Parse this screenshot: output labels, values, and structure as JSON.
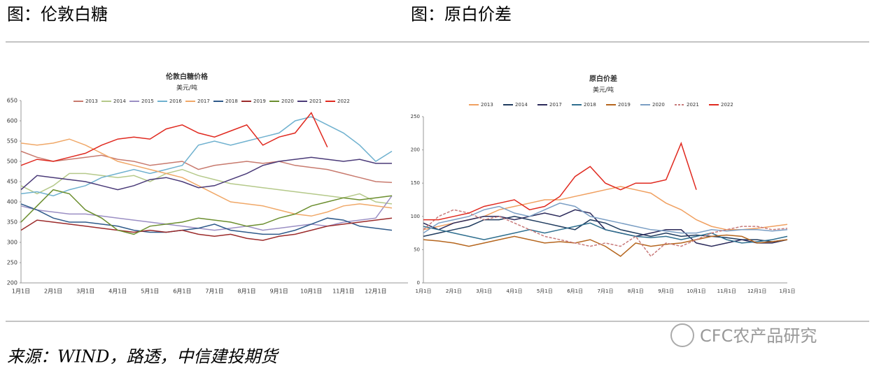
{
  "header": {
    "left": "图：伦敦白糖",
    "right": "图：原白价差"
  },
  "source": "来源：WIND，路透，中信建投期货",
  "watermark": "CFC农产品研究",
  "chart_data": [
    {
      "type": "line",
      "title": "伦敦白糖价格",
      "subtitle": "美元/吨",
      "categories": [
        "1月1日",
        null,
        "2月1日",
        null,
        "3月1日",
        null,
        "4月1日",
        null,
        "5月1日",
        null,
        "6月1日",
        null,
        "7月1日",
        null,
        "8月1日",
        null,
        "9月1日",
        null,
        "10月1日",
        null,
        "11月1日",
        null,
        "12月1日",
        null
      ],
      "ylim": [
        200,
        650
      ],
      "yticks": [
        200,
        250,
        300,
        350,
        400,
        450,
        500,
        550,
        600,
        650
      ],
      "series": [
        {
          "name": "2013",
          "color": "#c87a6e",
          "values": [
            525,
            510,
            500,
            505,
            510,
            515,
            505,
            500,
            490,
            495,
            500,
            480,
            490,
            495,
            500,
            495,
            500,
            490,
            485,
            480,
            470,
            460,
            450,
            448
          ]
        },
        {
          "name": "2014",
          "color": "#b5c98a",
          "values": [
            440,
            420,
            440,
            470,
            470,
            465,
            460,
            465,
            450,
            470,
            480,
            465,
            455,
            445,
            440,
            435,
            430,
            425,
            420,
            415,
            410,
            420,
            400,
            395
          ]
        },
        {
          "name": "2015",
          "color": "#9b8fc4",
          "values": [
            390,
            380,
            375,
            370,
            370,
            365,
            360,
            355,
            350,
            345,
            340,
            335,
            330,
            335,
            340,
            330,
            335,
            340,
            345,
            340,
            350,
            355,
            360,
            415
          ]
        },
        {
          "name": "2016",
          "color": "#6fb1cf",
          "values": [
            420,
            425,
            415,
            430,
            440,
            460,
            470,
            480,
            470,
            480,
            490,
            540,
            550,
            540,
            550,
            560,
            570,
            600,
            610,
            590,
            570,
            540,
            500,
            525
          ]
        },
        {
          "name": "2017",
          "color": "#f0a868",
          "values": [
            545,
            540,
            545,
            555,
            540,
            520,
            500,
            490,
            480,
            470,
            460,
            440,
            420,
            400,
            395,
            390,
            380,
            370,
            365,
            375,
            390,
            395,
            390,
            385
          ]
        },
        {
          "name": "2018",
          "color": "#2e5a8a",
          "values": [
            395,
            380,
            360,
            350,
            350,
            345,
            340,
            330,
            325,
            325,
            330,
            335,
            345,
            330,
            325,
            320,
            320,
            330,
            345,
            360,
            355,
            340,
            335,
            330
          ]
        },
        {
          "name": "2019",
          "color": "#9b2a2a",
          "values": [
            330,
            355,
            350,
            345,
            340,
            335,
            330,
            325,
            330,
            325,
            330,
            320,
            315,
            320,
            310,
            305,
            315,
            320,
            330,
            340,
            345,
            350,
            355,
            360
          ]
        },
        {
          "name": "2020",
          "color": "#6b8e2e",
          "values": [
            350,
            390,
            430,
            420,
            380,
            360,
            330,
            320,
            340,
            345,
            350,
            360,
            355,
            350,
            340,
            345,
            360,
            370,
            390,
            400,
            410,
            405,
            410,
            415
          ]
        },
        {
          "name": "2021",
          "color": "#4a3a78",
          "values": [
            430,
            465,
            460,
            455,
            450,
            440,
            430,
            440,
            455,
            460,
            450,
            435,
            440,
            455,
            470,
            490,
            500,
            505,
            510,
            505,
            500,
            505,
            495,
            495
          ]
        },
        {
          "name": "2022",
          "color": "#e0291f",
          "values": [
            490,
            505,
            500,
            510,
            520,
            540,
            555,
            560,
            555,
            580,
            590,
            570,
            560,
            575,
            590,
            540,
            560,
            570,
            620,
            535,
            null,
            null,
            null,
            null
          ]
        }
      ]
    },
    {
      "type": "line",
      "title": "原白价差",
      "subtitle": "美元/吨",
      "categories": [
        "1月1日",
        null,
        "2月1日",
        null,
        "3月1日",
        null,
        "4月1日",
        null,
        "5月1日",
        null,
        "6月1日",
        null,
        "7月1日",
        null,
        "8月1日",
        null,
        "9月1日",
        null,
        "10月1日",
        null,
        "11月1日",
        null,
        "12月1日",
        null,
        "1月1日"
      ],
      "ylim": [
        0,
        250
      ],
      "yticks": [
        0,
        50,
        100,
        150,
        200,
        250
      ],
      "series": [
        {
          "name": "2013",
          "color": "#f0a060",
          "values": [
            80,
            85,
            90,
            95,
            100,
            110,
            115,
            120,
            125,
            125,
            130,
            135,
            140,
            145,
            140,
            135,
            120,
            110,
            95,
            85,
            80,
            80,
            82,
            85,
            88
          ]
        },
        {
          "name": "2014",
          "color": "#1f3b5e",
          "values": [
            70,
            75,
            80,
            85,
            95,
            95,
            100,
            95,
            90,
            85,
            80,
            95,
            90,
            80,
            75,
            70,
            75,
            70,
            72,
            70,
            68,
            65,
            65,
            62,
            65
          ]
        },
        {
          "name": "2017",
          "color": "#2b2a5a",
          "values": [
            90,
            80,
            90,
            95,
            100,
            100,
            95,
            100,
            105,
            100,
            110,
            105,
            80,
            75,
            70,
            75,
            80,
            80,
            60,
            55,
            60,
            65,
            60,
            60,
            65
          ]
        },
        {
          "name": "2018",
          "color": "#2e6e8e",
          "values": [
            85,
            80,
            75,
            70,
            65,
            70,
            75,
            80,
            75,
            80,
            85,
            90,
            80,
            75,
            70,
            68,
            70,
            65,
            70,
            75,
            65,
            60,
            62,
            65,
            70
          ]
        },
        {
          "name": "2019",
          "color": "#b5651d",
          "values": [
            65,
            63,
            60,
            55,
            60,
            65,
            70,
            65,
            60,
            62,
            60,
            65,
            55,
            40,
            60,
            55,
            58,
            60,
            65,
            70,
            72,
            70,
            60,
            62,
            65
          ]
        },
        {
          "name": "2020",
          "color": "#7a9ec4",
          "values": [
            75,
            90,
            95,
            100,
            110,
            115,
            105,
            100,
            110,
            120,
            115,
            100,
            95,
            90,
            85,
            80,
            78,
            75,
            75,
            80,
            78,
            80,
            80,
            78,
            80
          ]
        },
        {
          "name": "2021",
          "color": "#c87a7a",
          "dashed": true,
          "values": [
            80,
            100,
            110,
            105,
            95,
            100,
            90,
            80,
            70,
            65,
            60,
            55,
            60,
            55,
            70,
            40,
            60,
            55,
            65,
            75,
            80,
            85,
            85,
            80,
            82
          ]
        },
        {
          "name": "2022",
          "color": "#e0291f",
          "values": [
            95,
            95,
            100,
            105,
            115,
            120,
            125,
            110,
            115,
            130,
            160,
            175,
            150,
            140,
            150,
            150,
            155,
            210,
            140,
            null,
            null,
            null,
            null,
            null,
            null
          ]
        }
      ]
    }
  ]
}
